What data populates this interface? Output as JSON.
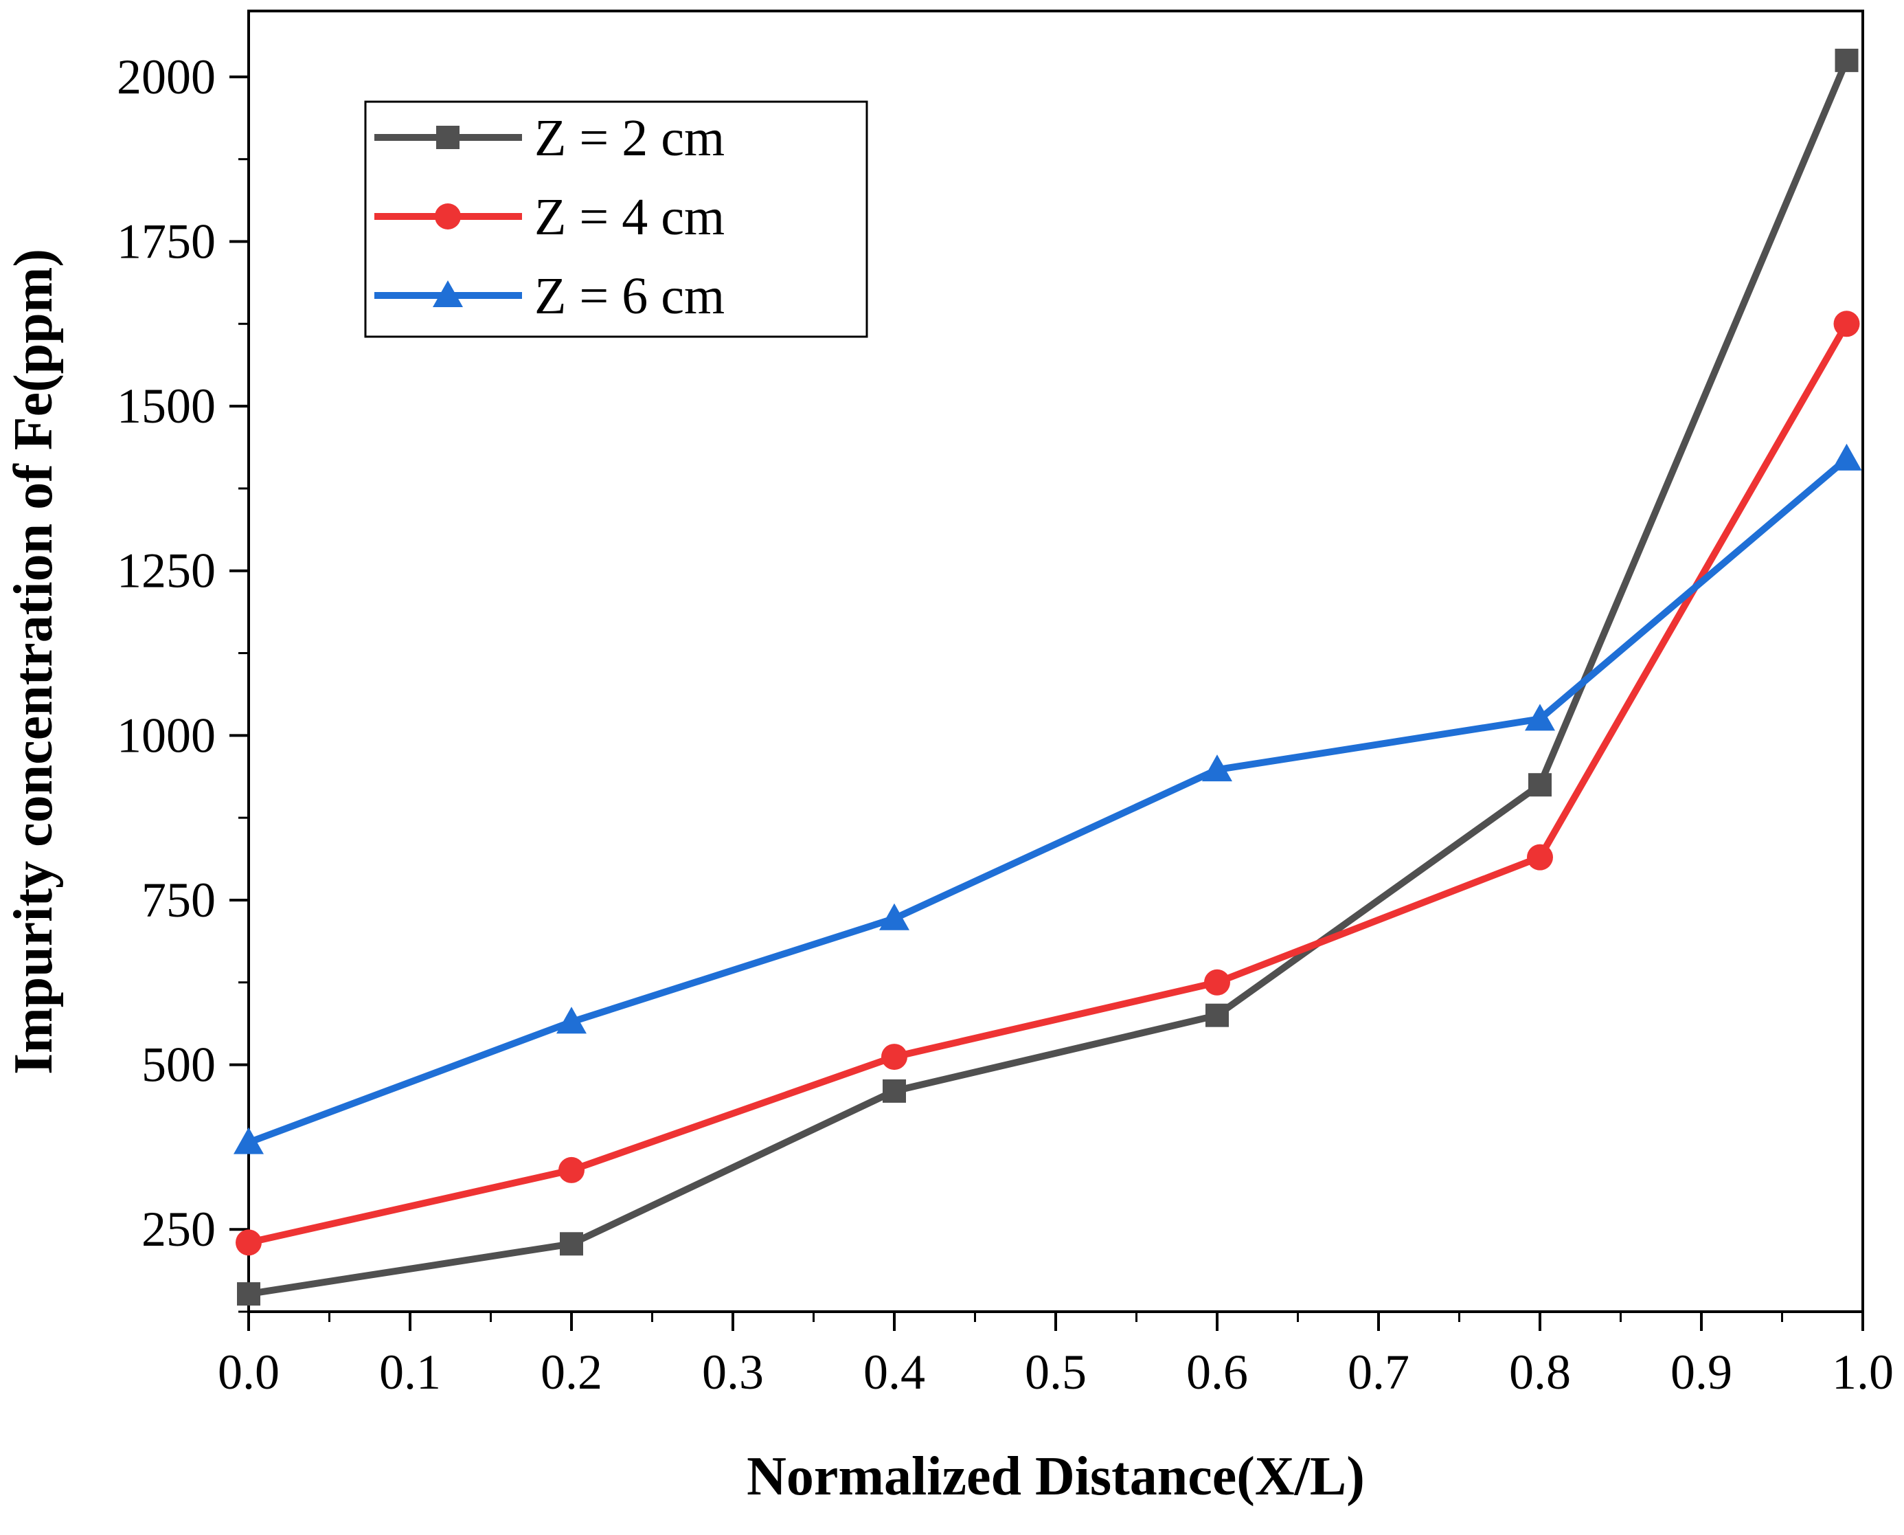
{
  "chart_data": {
    "type": "line",
    "title": "",
    "xlabel": "Normalized Distance(X/L)",
    "ylabel": "Impurity concentration of Fe(ppm)",
    "xlim": [
      0.0,
      1.0
    ],
    "ylim": [
      125,
      2100
    ],
    "xticks": [
      0.0,
      0.1,
      0.2,
      0.3,
      0.4,
      0.5,
      0.6,
      0.7,
      0.8,
      0.9,
      1.0
    ],
    "xtick_labels": [
      "0.0",
      "0.1",
      "0.2",
      "0.3",
      "0.4",
      "0.5",
      "0.6",
      "0.7",
      "0.8",
      "0.9",
      "1.0"
    ],
    "yticks": [
      250,
      500,
      750,
      1000,
      1250,
      1500,
      1750,
      2000
    ],
    "ytick_labels": [
      "250",
      "500",
      "750",
      "1000",
      "1250",
      "1500",
      "1750",
      "2000"
    ],
    "grid": false,
    "legend_position": "top-left",
    "x": [
      0.0,
      0.2,
      0.4,
      0.6,
      0.8,
      0.99
    ],
    "series": [
      {
        "name": "Z = 2 cm",
        "marker": "square",
        "color": "#505050",
        "values": [
          152,
          228,
          460,
          575,
          925,
          2025
        ]
      },
      {
        "name": "Z = 4 cm",
        "marker": "circle",
        "color": "#ee3333",
        "values": [
          230,
          340,
          512,
          625,
          815,
          1625
        ]
      },
      {
        "name": "Z = 6 cm",
        "marker": "triangle",
        "color": "#1f6fd6",
        "values": [
          382,
          565,
          722,
          948,
          1025,
          1420
        ]
      }
    ]
  }
}
